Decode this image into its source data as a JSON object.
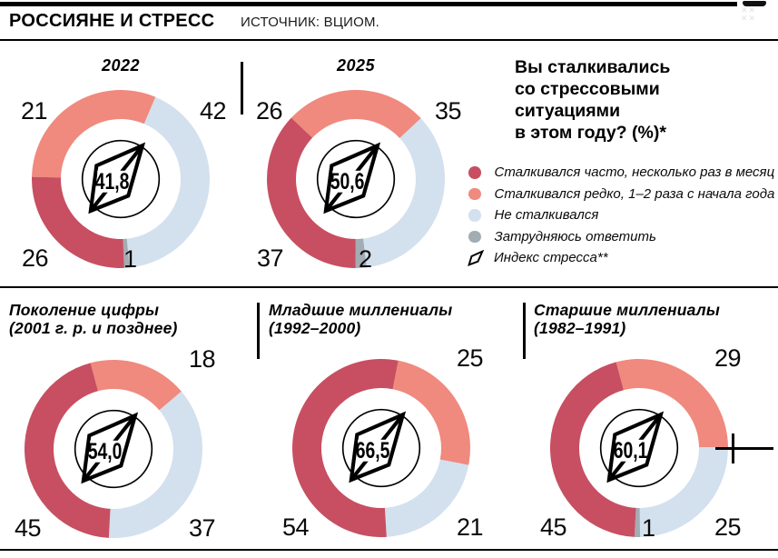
{
  "header": {
    "title": "РОССИЯНЕ И СТРЕСС",
    "source": "ИСТОЧНИК: ВЦИОМ."
  },
  "question": {
    "lines": [
      "Вы сталкивались",
      "со стрессовыми",
      "ситуациями",
      "в этом году? (%)*"
    ]
  },
  "colors": {
    "often": "#c74f61",
    "rare": "#f0897e",
    "none": "#d3e0ee",
    "unsure": "#a2acb3",
    "ink": "#000000"
  },
  "legend": {
    "items": [
      {
        "key": "often",
        "type": "dot",
        "label": "Сталкивался часто, несколько раз в месяц"
      },
      {
        "key": "rare",
        "type": "dot",
        "label": "Сталкивался редко, 1–2 раза с начала года"
      },
      {
        "key": "none",
        "type": "dot",
        "label": "Не сталкивался"
      },
      {
        "key": "unsure",
        "type": "dot",
        "label": "Затрудняюсь ответить"
      },
      {
        "key": "index",
        "type": "kite",
        "label": "Индекс стресса**"
      }
    ]
  },
  "chart_data": [
    {
      "type": "donut",
      "title": "2022",
      "index_value": "41,8",
      "segments": [
        {
          "key": "rare",
          "value": 21,
          "start": 271.4,
          "sweep": 111.6
        },
        {
          "key": "none",
          "value": 42,
          "start": 23.0,
          "sweep": 151.2
        },
        {
          "key": "unsure",
          "value": 1,
          "start": 174.2,
          "sweep": 3.6
        },
        {
          "key": "often",
          "value": 26,
          "start": 177.8,
          "sweep": 93.6
        }
      ],
      "labels": [
        {
          "text": "21",
          "slot": "top-left"
        },
        {
          "text": "42",
          "slot": "top-right"
        },
        {
          "text": "26",
          "slot": "bottom-left"
        },
        {
          "text": "1",
          "slot": "bottom-center"
        }
      ]
    },
    {
      "type": "donut",
      "title": "2025",
      "index_value": "50,6",
      "segments": [
        {
          "key": "rare",
          "value": 26,
          "start": 313.4,
          "sweep": 93.6
        },
        {
          "key": "none",
          "value": 35,
          "start": 47.0,
          "sweep": 126.0
        },
        {
          "key": "unsure",
          "value": 2,
          "start": 173.0,
          "sweep": 7.2
        },
        {
          "key": "often",
          "value": 37,
          "start": 180.2,
          "sweep": 133.2
        }
      ],
      "labels": [
        {
          "text": "26",
          "slot": "top-left"
        },
        {
          "text": "35",
          "slot": "top-right"
        },
        {
          "text": "37",
          "slot": "bottom-left"
        },
        {
          "text": "2",
          "slot": "bottom-center"
        }
      ]
    },
    {
      "type": "donut",
      "title_line1": "Поколение цифры",
      "title_line2": "(2001 г. р. и позднее)",
      "index_value": "54,0",
      "segments": [
        {
          "key": "rare",
          "value": 18,
          "start": 345.0,
          "sweep": 64.8
        },
        {
          "key": "none",
          "value": 37,
          "start": 49.8,
          "sweep": 133.2
        },
        {
          "key": "often",
          "value": 45,
          "start": 183.0,
          "sweep": 162.0
        }
      ],
      "labels": [
        {
          "text": "18",
          "slot": "top-right"
        },
        {
          "text": "37",
          "slot": "bottom-right"
        },
        {
          "text": "45",
          "slot": "bottom-left"
        }
      ]
    },
    {
      "type": "donut",
      "title_line1": "Младшие миллениалы",
      "title_line2": "(1992–2000)",
      "index_value": "66,5",
      "segments": [
        {
          "key": "rare",
          "value": 25,
          "start": 11.0,
          "sweep": 90.0
        },
        {
          "key": "none",
          "value": 21,
          "start": 101.0,
          "sweep": 75.6
        },
        {
          "key": "often",
          "value": 54,
          "start": 176.6,
          "sweep": 194.4
        }
      ],
      "labels": [
        {
          "text": "25",
          "slot": "top-right"
        },
        {
          "text": "21",
          "slot": "bottom-right"
        },
        {
          "text": "54",
          "slot": "bottom-left"
        }
      ]
    },
    {
      "type": "donut",
      "title_line1": "Старшие миллениалы",
      "title_line2": "(1982–1991)",
      "index_value": "60,1",
      "segments": [
        {
          "key": "rare",
          "value": 29,
          "start": 345.0,
          "sweep": 104.4
        },
        {
          "key": "none",
          "value": 25,
          "start": 89.4,
          "sweep": 90.0
        },
        {
          "key": "unsure",
          "value": 1,
          "start": 179.4,
          "sweep": 3.6
        },
        {
          "key": "often",
          "value": 45,
          "start": 183.0,
          "sweep": 162.0
        }
      ],
      "labels": [
        {
          "text": "29",
          "slot": "top-right"
        },
        {
          "text": "25",
          "slot": "bottom-right"
        },
        {
          "text": "1",
          "slot": "bottom-center"
        },
        {
          "text": "45",
          "slot": "bottom-left"
        }
      ]
    }
  ]
}
